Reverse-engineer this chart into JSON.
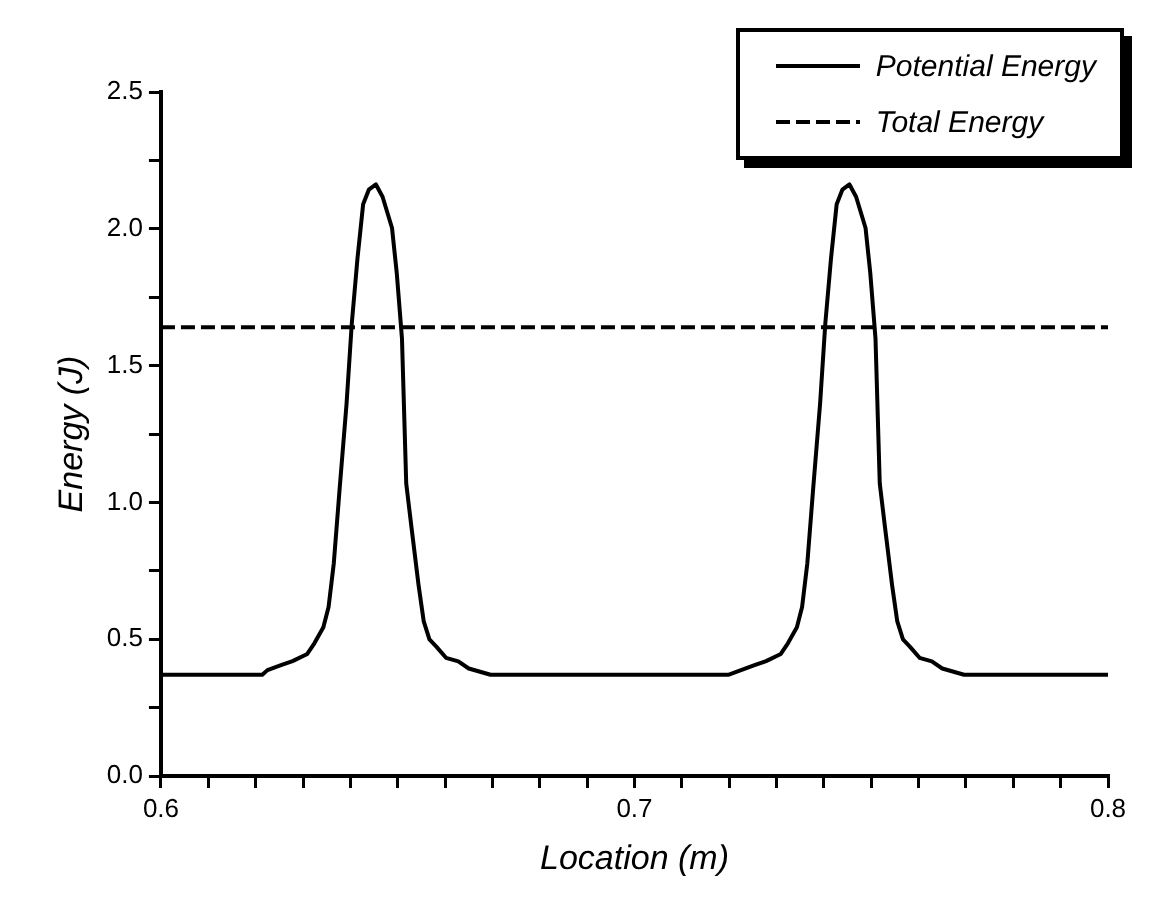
{
  "chart_data": {
    "type": "line",
    "xlabel": "Location (m)",
    "ylabel": "Energy (J)",
    "xlim": [
      0.6,
      0.8
    ],
    "ylim": [
      0,
      2.5
    ],
    "xticks": [
      0.6,
      {
        "value": 0.61,
        "label": null
      },
      {
        "value": 0.62,
        "label": null
      },
      {
        "value": 0.63,
        "label": null
      },
      {
        "value": 0.64,
        "label": null
      },
      {
        "value": 0.65,
        "label": null
      },
      {
        "value": 0.66,
        "label": null
      },
      {
        "value": 0.67,
        "label": null
      },
      {
        "value": 0.68,
        "label": null
      },
      {
        "value": 0.69,
        "label": null
      },
      0.7,
      {
        "value": 0.71,
        "label": null
      },
      {
        "value": 0.72,
        "label": null
      },
      {
        "value": 0.73,
        "label": null
      },
      {
        "value": 0.74,
        "label": null
      },
      {
        "value": 0.75,
        "label": null
      },
      {
        "value": 0.76,
        "label": null
      },
      {
        "value": 0.77,
        "label": null
      },
      {
        "value": 0.78,
        "label": null
      },
      {
        "value": 0.79,
        "label": null
      },
      0.8
    ],
    "yticks": [
      {
        "value": 0,
        "label": "0.0"
      },
      {
        "value": 0.25,
        "label": null
      },
      0.5,
      {
        "value": 0.75,
        "label": null
      },
      {
        "value": 1,
        "label": "1.0"
      },
      {
        "value": 1.25,
        "label": null
      },
      1.5,
      {
        "value": 1.75,
        "label": null
      },
      {
        "value": 2,
        "label": "2.0"
      },
      {
        "value": 2.25,
        "label": null
      },
      2.5
    ],
    "legend": "top right",
    "marker": "none",
    "series": [
      {
        "name": "Potential Energy",
        "color": "#000000",
        "line_style": "solid",
        "x": [
          0.6,
          0.6214,
          0.6225,
          0.6255,
          0.6278,
          0.6309,
          0.6324,
          0.6343,
          0.6354,
          0.6365,
          0.6377,
          0.6392,
          0.6403,
          0.6415,
          0.6427,
          0.6439,
          0.6454,
          0.6468,
          0.6488,
          0.6498,
          0.6509,
          0.6518,
          0.6529,
          0.6544,
          0.6555,
          0.6567,
          0.6582,
          0.6602,
          0.6628,
          0.665,
          0.6696,
          0.7198,
          0.7225,
          0.7255,
          0.7278,
          0.7309,
          0.7324,
          0.7343,
          0.7354,
          0.7365,
          0.7377,
          0.7392,
          0.7403,
          0.7415,
          0.7427,
          0.7439,
          0.7454,
          0.7468,
          0.7488,
          0.7498,
          0.7509,
          0.7518,
          0.7529,
          0.7544,
          0.7555,
          0.7567,
          0.7582,
          0.7602,
          0.7628,
          0.765,
          0.7696,
          0.8
        ],
        "values": [
          0.37,
          0.37,
          0.387,
          0.406,
          0.42,
          0.446,
          0.485,
          0.544,
          0.618,
          0.777,
          1.042,
          1.361,
          1.653,
          1.891,
          2.09,
          2.143,
          2.162,
          2.117,
          2.003,
          1.838,
          1.599,
          1.069,
          0.91,
          0.698,
          0.565,
          0.499,
          0.472,
          0.432,
          0.419,
          0.393,
          0.37,
          0.37,
          0.387,
          0.406,
          0.42,
          0.446,
          0.485,
          0.544,
          0.618,
          0.777,
          1.042,
          1.361,
          1.653,
          1.891,
          2.09,
          2.143,
          2.162,
          2.117,
          2.003,
          1.838,
          1.599,
          1.069,
          0.91,
          0.698,
          0.565,
          0.499,
          0.472,
          0.432,
          0.419,
          0.393,
          0.37,
          0.37
        ]
      },
      {
        "name": "Total Energy",
        "color": "#000000",
        "line_style": "dashed",
        "x": [
          0.6,
          0.8
        ],
        "values": [
          1.64,
          1.64
        ]
      }
    ]
  }
}
